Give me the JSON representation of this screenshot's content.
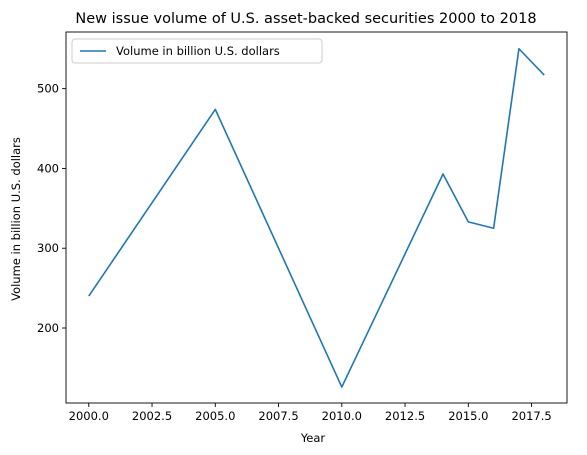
{
  "chart_data": {
    "type": "line",
    "title": "New issue volume of U.S. asset-backed securities 2000 to 2018",
    "xlabel": "Year",
    "ylabel": "Volume in billion U.S. dollars",
    "xlim": [
      1999.1,
      2018.9
    ],
    "ylim": [
      106,
      571
    ],
    "xticks": [
      2000.0,
      2002.5,
      2005.0,
      2007.5,
      2010.0,
      2012.5,
      2015.0,
      2017.5
    ],
    "xtick_labels": [
      "2000.0",
      "2002.5",
      "2005.0",
      "2007.5",
      "2010.0",
      "2012.5",
      "2015.0",
      "2017.5"
    ],
    "yticks": [
      200,
      300,
      400,
      500
    ],
    "ytick_labels": [
      "200",
      "300",
      "400",
      "500"
    ],
    "grid": false,
    "legend_position": "top-left",
    "series": [
      {
        "name": "Volume in billion U.S. dollars",
        "color": "#1f77b4",
        "x": [
          2000,
          2005,
          2010,
          2014,
          2015,
          2016,
          2017,
          2018
        ],
        "values": [
          240,
          474,
          126,
          393,
          333,
          325,
          550,
          517
        ]
      }
    ]
  }
}
